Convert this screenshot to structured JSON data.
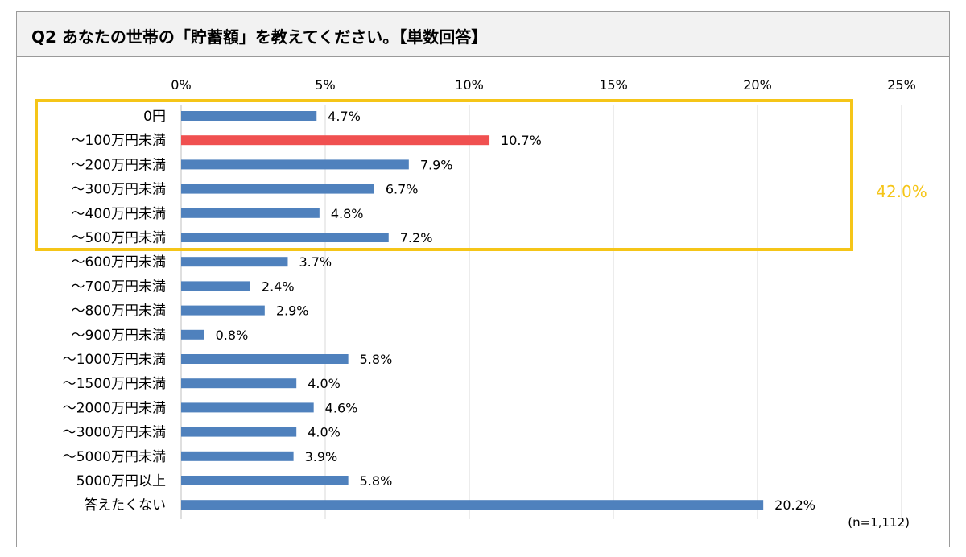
{
  "title": "Q2 あなたの世帯の「貯蓄額」を教えてください。【単数回答】",
  "sample_size": "(n=1,112)",
  "highlight": {
    "label": "42.0%",
    "color": "#f5c518",
    "from_index": 0,
    "to_index": 5
  },
  "colors": {
    "bar": "#4f81bd",
    "bar_highlight": "#f05050",
    "grid": "#d9d9d9"
  },
  "chart_data": {
    "type": "bar",
    "orientation": "horizontal",
    "categories": [
      "0円",
      "～100万円未満",
      "～200万円未満",
      "～300万円未満",
      "～400万円未満",
      "～500万円未満",
      "～600万円未満",
      "～700万円未満",
      "～800万円未満",
      "～900万円未満",
      "～1000万円未満",
      "～1500万円未満",
      "～2000万円未満",
      "～3000万円未満",
      "～5000万円未満",
      "5000万円以上",
      "答えたくない"
    ],
    "values": [
      4.7,
      10.7,
      7.9,
      6.7,
      4.8,
      7.2,
      3.7,
      2.4,
      2.9,
      0.8,
      5.8,
      4.0,
      4.6,
      4.0,
      3.9,
      5.8,
      20.2
    ],
    "value_labels": [
      "4.7%",
      "10.7%",
      "7.9%",
      "6.7%",
      "4.8%",
      "7.2%",
      "3.7%",
      "2.4%",
      "2.9%",
      "0.8%",
      "5.8%",
      "4.0%",
      "4.6%",
      "4.0%",
      "3.9%",
      "5.8%",
      "20.2%"
    ],
    "highlighted_index": 1,
    "xlim": [
      0,
      25
    ],
    "x_ticks": [
      "0%",
      "5%",
      "10%",
      "15%",
      "20%",
      "25%"
    ],
    "grid": true,
    "axis_position": "top"
  }
}
